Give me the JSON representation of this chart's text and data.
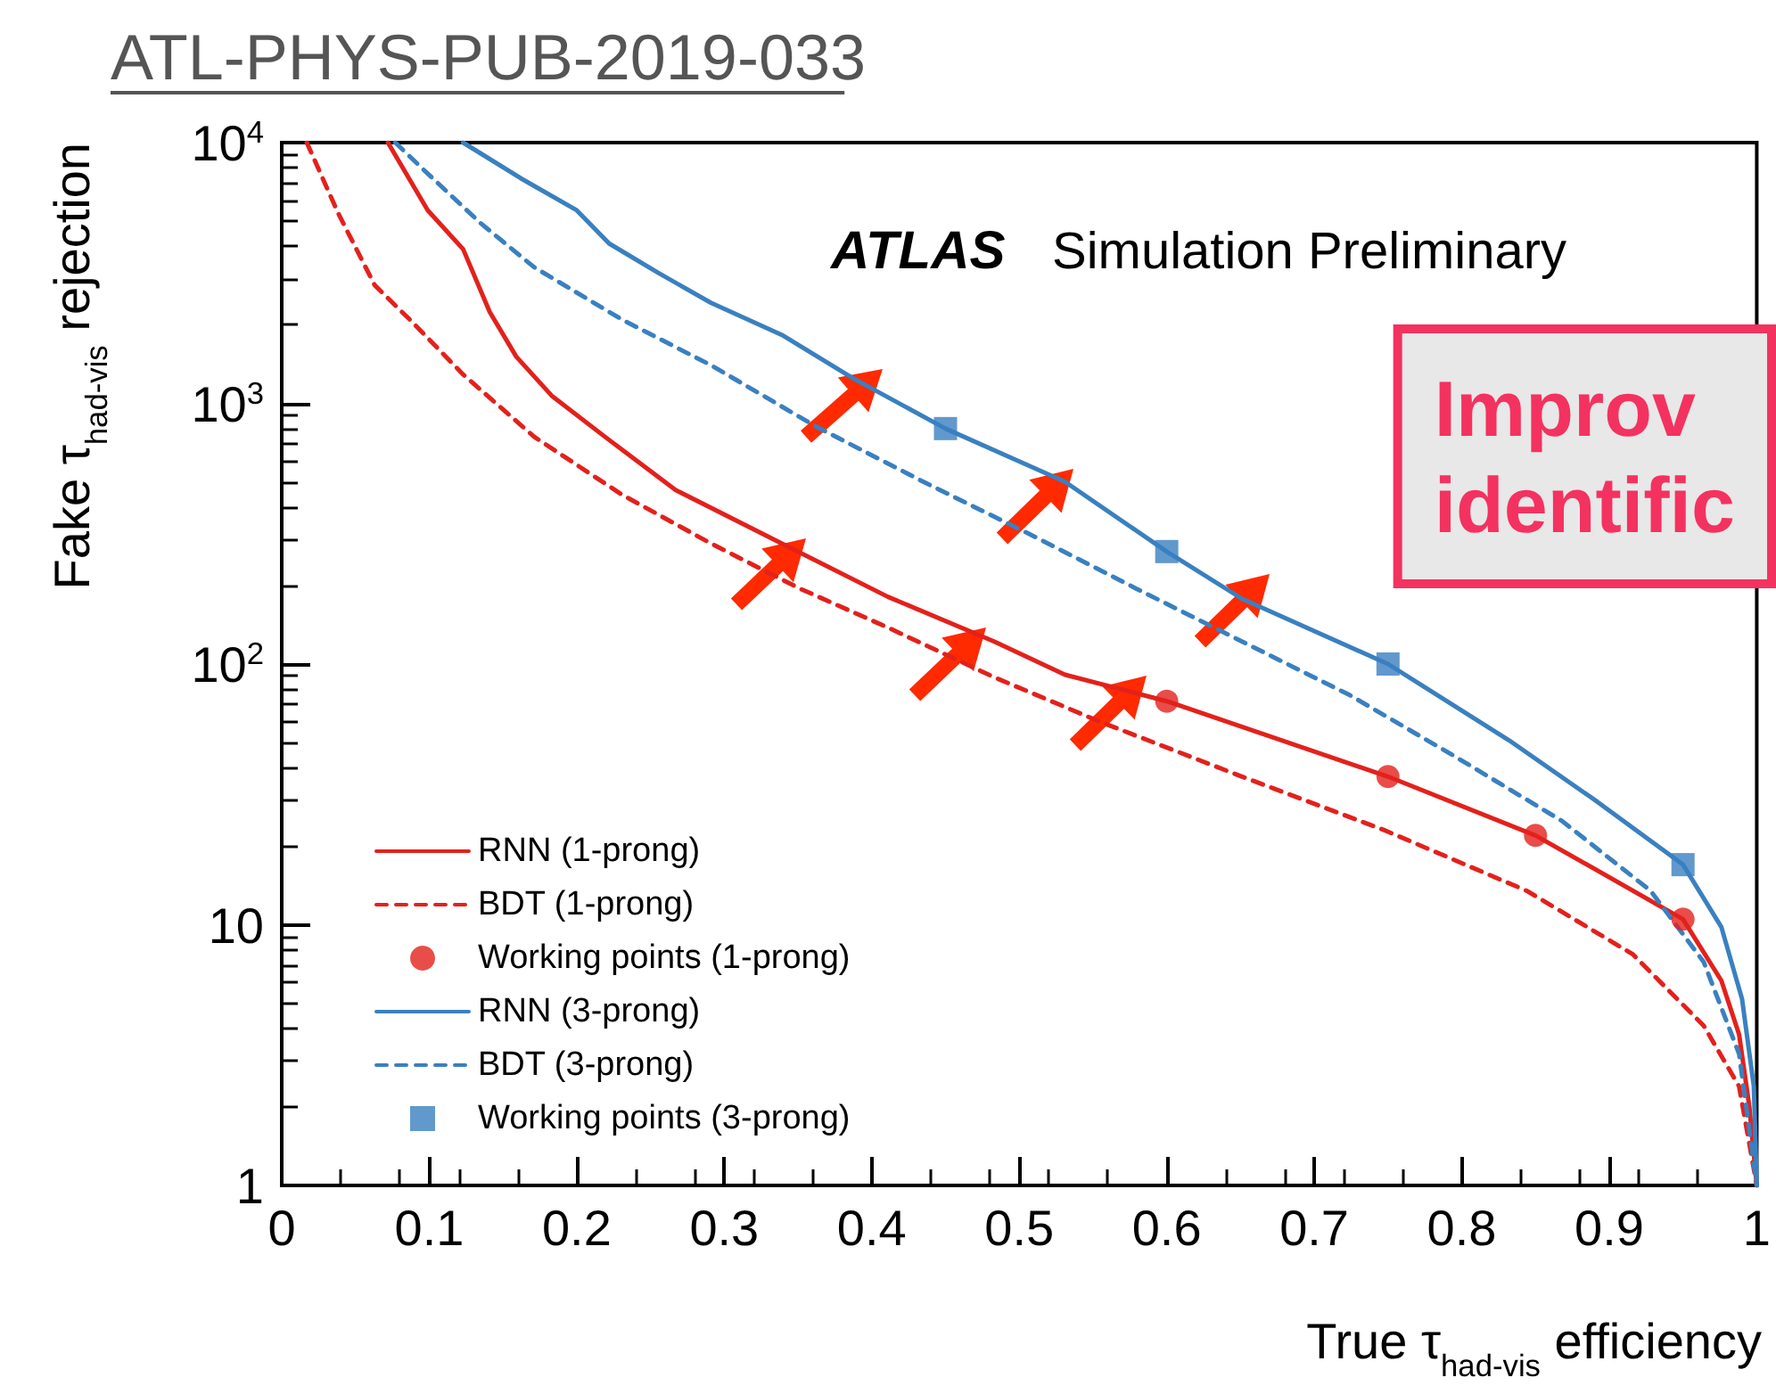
{
  "chart_data": {
    "type": "line",
    "title": "ATL-PHYS-PUB-2019-033",
    "xlabel": "True τ$_{had-vis}$ efficiency",
    "ylabel": "Fake τ$_{had-vis}$ rejection",
    "annotations": [
      "ATLAS",
      "Simulation Preliminary",
      "Improv\nidentific"
    ],
    "log": "y",
    "grid": false,
    "legend": "bottom left",
    "xlim": [
      0,
      1
    ],
    "ylim": [
      1,
      10000
    ],
    "xticks": [
      0,
      0.1,
      0.2,
      0.3,
      0.4,
      0.5,
      0.6,
      0.7,
      0.8,
      0.9,
      1
    ],
    "yticks": [
      1,
      10,
      {
        "value": 100,
        "label": "10$^{2}$"
      },
      {
        "value": 1000,
        "label": "10$^{3}$"
      },
      {
        "value": 10000,
        "label": "10$^{4}$"
      }
    ],
    "series": [
      {
        "name": "RNN (1-prong)",
        "line_style": "solid",
        "marker": "none",
        "color": "#e3211c",
        "x": [
          0.072,
          0.099,
          0.123,
          0.141,
          0.159,
          0.183,
          0.219,
          0.267,
          0.339,
          0.411,
          0.483,
          0.531,
          0.6,
          0.75,
          0.85,
          0.95,
          0.976,
          0.988,
          0.995,
          1
        ],
        "values": [
          10000,
          5500,
          3900,
          2240,
          1510,
          1070,
          745,
          465,
          290,
          181,
          122,
          91,
          72,
          37,
          22,
          10.5,
          6.1,
          3.8,
          2,
          1
        ]
      },
      {
        "name": "BDT (1-prong)",
        "line_style": "dashed",
        "marker": "none",
        "color": "#e3211c",
        "x": [
          0.017,
          0.038,
          0.063,
          0.087,
          0.123,
          0.171,
          0.231,
          0.291,
          0.351,
          0.411,
          0.483,
          0.555,
          0.651,
          0.748,
          0.844,
          0.916,
          0.964,
          0.988,
          1
        ],
        "values": [
          10000,
          5400,
          2840,
          2090,
          1290,
          745,
          445,
          290,
          195,
          138,
          89,
          60,
          37,
          23,
          13.5,
          7.7,
          4.1,
          2.4,
          1
        ]
      },
      {
        "name": "Working points (1-prong)",
        "type": "scatter",
        "marker": "circle",
        "color": "#e3211c",
        "x": [
          0.6,
          0.75,
          0.85,
          0.95
        ],
        "values": [
          72,
          37,
          22,
          10.5
        ]
      },
      {
        "name": "RNN (3-prong)",
        "line_style": "solid",
        "marker": "none",
        "color": "#3a80c0",
        "x": [
          0.123,
          0.162,
          0.2,
          0.222,
          0.255,
          0.291,
          0.339,
          0.387,
          0.45,
          0.531,
          0.6,
          0.651,
          0.75,
          0.832,
          0.892,
          0.95,
          0.976,
          0.99,
          0.998,
          1
        ],
        "values": [
          10000,
          7300,
          5500,
          4100,
          3170,
          2430,
          1830,
          1250,
          800,
          500,
          270,
          178,
          100,
          51,
          29.6,
          17,
          9.8,
          5.2,
          2.4,
          1
        ]
      },
      {
        "name": "BDT (3-prong)",
        "line_style": "dashed",
        "marker": "none",
        "color": "#3a80c0",
        "x": [
          0.077,
          0.099,
          0.135,
          0.171,
          0.231,
          0.291,
          0.363,
          0.435,
          0.507,
          0.579,
          0.651,
          0.724,
          0.796,
          0.868,
          0.928,
          0.964,
          0.988,
          1
        ],
        "values": [
          10000,
          7600,
          4900,
          3330,
          2090,
          1400,
          810,
          500,
          315,
          195,
          122,
          76,
          44,
          25,
          13.5,
          7.2,
          3.2,
          1
        ]
      },
      {
        "name": "Working points (3-prong)",
        "type": "scatter",
        "marker": "square",
        "color": "#3a80c0",
        "x": [
          0.45,
          0.6,
          0.75,
          0.95
        ],
        "values": [
          800,
          270,
          100,
          17
        ]
      }
    ]
  }
}
